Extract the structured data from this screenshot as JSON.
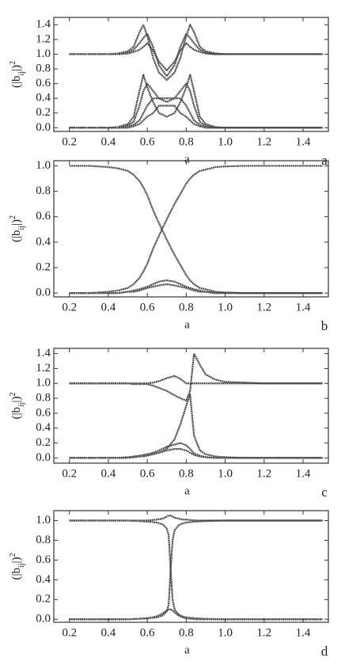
{
  "chart_data": [
    {
      "type": "line",
      "panel_label": "a",
      "x_label": "a",
      "y_label": {
        "prefix": "(|b",
        "sub": "ij",
        "mid": "|)",
        "sup": "2"
      },
      "xlim": [
        0.12,
        1.53
      ],
      "ylim": [
        -0.05,
        1.5
      ],
      "xticks": [
        0.2,
        0.4,
        0.6,
        0.8,
        {
          "value": 1,
          "label": "1.0"
        },
        1.2,
        1.4
      ],
      "yticks": [
        {
          "value": 0,
          "label": "0.0"
        },
        0.2,
        0.4,
        0.6,
        0.8,
        {
          "value": 1,
          "label": "1.0"
        },
        1.2,
        1.4
      ],
      "x": [
        0.2,
        0.3,
        0.4,
        0.45,
        0.5,
        0.53,
        0.56,
        0.58,
        0.6,
        0.63,
        0.66,
        0.7,
        0.74,
        0.77,
        0.8,
        0.82,
        0.84,
        0.87,
        0.9,
        0.95,
        1.0,
        1.1,
        1.2,
        1.3,
        1.4,
        1.5
      ],
      "series": [
        {
          "color": "#4a4a4a",
          "values": [
            1,
            1,
            1,
            1.01,
            1.04,
            1.1,
            1.3,
            1.4,
            1.25,
            0.95,
            0.75,
            0.65,
            0.75,
            0.95,
            1.25,
            1.4,
            1.3,
            1.1,
            1.04,
            1.01,
            1,
            1,
            1,
            1,
            1,
            1
          ]
        },
        {
          "color": "#4a4a4a",
          "values": [
            1,
            1,
            1,
            1,
            1.02,
            1.06,
            1.15,
            1.22,
            1.28,
            1.1,
            0.85,
            0.7,
            0.85,
            1.1,
            1.28,
            1.22,
            1.15,
            1.06,
            1.02,
            1,
            1,
            1,
            1,
            1,
            1,
            1
          ]
        },
        {
          "color": "#4a4a4a",
          "values": [
            1,
            1,
            1,
            1,
            1.01,
            1.03,
            1.06,
            1.1,
            1.15,
            1.05,
            0.9,
            0.78,
            0.9,
            1.05,
            1.15,
            1.1,
            1.06,
            1.03,
            1.01,
            1,
            1,
            1,
            1,
            1,
            1,
            1
          ]
        },
        {
          "color": "#4a4a4a",
          "values": [
            0,
            0,
            0,
            0.01,
            0.05,
            0.15,
            0.5,
            0.72,
            0.55,
            0.35,
            0.2,
            0.15,
            0.2,
            0.35,
            0.55,
            0.72,
            0.5,
            0.15,
            0.05,
            0.01,
            0,
            0,
            0,
            0,
            0,
            0
          ]
        },
        {
          "color": "#4a4a4a",
          "values": [
            0,
            0,
            0,
            0,
            0.03,
            0.08,
            0.3,
            0.5,
            0.6,
            0.5,
            0.4,
            0.35,
            0.4,
            0.5,
            0.6,
            0.5,
            0.3,
            0.08,
            0.03,
            0,
            0,
            0,
            0,
            0,
            0,
            0
          ]
        },
        {
          "color": "#4a4a4a",
          "values": [
            0,
            0,
            0,
            0,
            0.01,
            0.04,
            0.1,
            0.2,
            0.3,
            0.4,
            0.4,
            0.4,
            0.4,
            0.4,
            0.3,
            0.2,
            0.1,
            0.04,
            0.01,
            0,
            0,
            0,
            0,
            0,
            0,
            0
          ]
        },
        {
          "color": "#4a4a4a",
          "values": [
            0,
            0,
            0,
            0,
            0,
            0.02,
            0.05,
            0.1,
            0.15,
            0.2,
            0.3,
            0.3,
            0.3,
            0.2,
            0.15,
            0.1,
            0.05,
            0.02,
            0,
            0,
            0,
            0,
            0,
            0,
            0,
            0
          ]
        }
      ]
    },
    {
      "type": "line",
      "panel_label": "b",
      "x_label": "a",
      "y_label": {
        "prefix": "(|b",
        "sub": "ij",
        "mid": "|)",
        "sup": "2"
      },
      "xlim": [
        0.12,
        1.53
      ],
      "ylim": [
        -0.03,
        1.04
      ],
      "xticks": [
        0.2,
        0.4,
        0.6,
        0.8,
        {
          "value": 1,
          "label": "1.0"
        },
        1.2,
        1.4
      ],
      "yticks": [
        {
          "value": 0,
          "label": "0.0"
        },
        0.2,
        0.4,
        0.6,
        0.8,
        {
          "value": 1,
          "label": "1.0"
        }
      ],
      "x": [
        0.2,
        0.3,
        0.4,
        0.45,
        0.5,
        0.53,
        0.56,
        0.58,
        0.6,
        0.63,
        0.66,
        0.7,
        0.74,
        0.77,
        0.8,
        0.82,
        0.84,
        0.87,
        0.9,
        0.95,
        1.0,
        1.1,
        1.2,
        1.3,
        1.4,
        1.5
      ],
      "series": [
        {
          "color": "#4a4a4a",
          "values": [
            1,
            1,
            0.99,
            0.98,
            0.96,
            0.93,
            0.88,
            0.83,
            0.77,
            0.65,
            0.55,
            0.42,
            0.3,
            0.22,
            0.14,
            0.1,
            0.07,
            0.04,
            0.03,
            0.01,
            0.005,
            0,
            0,
            0,
            0,
            0
          ]
        },
        {
          "color": "#4a4a4a",
          "values": [
            0,
            0,
            0.01,
            0.02,
            0.04,
            0.07,
            0.12,
            0.17,
            0.23,
            0.35,
            0.45,
            0.58,
            0.7,
            0.78,
            0.86,
            0.9,
            0.93,
            0.96,
            0.97,
            0.99,
            0.995,
            1,
            1,
            1,
            1,
            1
          ]
        },
        {
          "color": "#4a4a4a",
          "values": [
            0,
            0,
            0,
            0,
            0.01,
            0.02,
            0.03,
            0.04,
            0.05,
            0.07,
            0.09,
            0.1,
            0.09,
            0.07,
            0.05,
            0.04,
            0.03,
            0.02,
            0.01,
            0,
            0,
            0,
            0,
            0,
            0,
            0
          ]
        },
        {
          "color": "#4a4a4a",
          "values": [
            0,
            0,
            0,
            0,
            0.01,
            0.01,
            0.02,
            0.03,
            0.04,
            0.05,
            0.06,
            0.07,
            0.06,
            0.05,
            0.04,
            0.03,
            0.02,
            0.01,
            0.01,
            0,
            0,
            0,
            0,
            0,
            0,
            0
          ]
        }
      ]
    },
    {
      "type": "line",
      "panel_label": "c",
      "x_label": "a",
      "y_label": {
        "prefix": "(|b",
        "sub": "ij",
        "mid": "|)",
        "sup": "2"
      },
      "xlim": [
        0.12,
        1.53
      ],
      "ylim": [
        -0.07,
        1.47
      ],
      "xticks": [
        0.2,
        0.4,
        0.6,
        0.8,
        {
          "value": 1,
          "label": "1.0"
        },
        1.2,
        1.4
      ],
      "yticks": [
        {
          "value": 0,
          "label": "0.0"
        },
        0.2,
        0.4,
        0.6,
        0.8,
        {
          "value": 1,
          "label": "1.0"
        },
        1.2,
        1.4
      ],
      "x": [
        0.2,
        0.3,
        0.4,
        0.45,
        0.5,
        0.53,
        0.56,
        0.58,
        0.6,
        0.63,
        0.66,
        0.7,
        0.74,
        0.77,
        0.8,
        0.82,
        0.84,
        0.87,
        0.9,
        0.95,
        1.0,
        1.1,
        1.2,
        1.3,
        1.4,
        1.5
      ],
      "series": [
        {
          "color": "#4a4a4a",
          "values": [
            1,
            1,
            1,
            1,
            1,
            0.99,
            0.99,
            0.99,
            0.99,
            0.97,
            0.94,
            0.9,
            0.84,
            0.8,
            0.77,
            0.9,
            1.4,
            1.25,
            1.12,
            1.05,
            1.02,
            1.01,
            1,
            1,
            1,
            1
          ]
        },
        {
          "color": "#4a4a4a",
          "values": [
            1,
            1,
            1,
            1,
            1,
            1,
            1,
            1,
            1,
            1.01,
            1.03,
            1.07,
            1.1,
            1.06,
            1,
            1,
            1,
            1,
            1,
            1,
            1,
            1,
            1,
            1,
            1,
            1
          ]
        },
        {
          "color": "#4a4a4a",
          "values": [
            0,
            0,
            0,
            0,
            0.01,
            0.01,
            0.02,
            0.02,
            0.03,
            0.05,
            0.07,
            0.12,
            0.25,
            0.45,
            0.7,
            0.85,
            0.3,
            0.1,
            0.05,
            0.02,
            0.01,
            0,
            0,
            0,
            0,
            0
          ]
        },
        {
          "color": "#4a4a4a",
          "values": [
            0,
            0,
            0,
            0,
            0.01,
            0.02,
            0.03,
            0.04,
            0.05,
            0.07,
            0.1,
            0.15,
            0.18,
            0.2,
            0.17,
            0.12,
            0.06,
            0.03,
            0.01,
            0,
            0,
            0,
            0,
            0,
            0,
            0
          ]
        },
        {
          "color": "#4a4a4a",
          "values": [
            0,
            0,
            0,
            0,
            0,
            0.01,
            0.02,
            0.03,
            0.04,
            0.05,
            0.07,
            0.1,
            0.12,
            0.12,
            0.1,
            0.07,
            0.04,
            0.02,
            0.01,
            0,
            0,
            0,
            0,
            0,
            0,
            0
          ]
        }
      ]
    },
    {
      "type": "line",
      "panel_label": "d",
      "x_label": "a",
      "y_label": {
        "prefix": "(|b",
        "sub": "ij",
        "mid": "|)",
        "sup": "2"
      },
      "xlim": [
        0.12,
        1.53
      ],
      "ylim": [
        -0.03,
        1.1
      ],
      "xticks": [
        0.2,
        0.4,
        0.6,
        0.8,
        {
          "value": 1,
          "label": "1.0"
        },
        1.2,
        1.4
      ],
      "yticks": [
        {
          "value": 0,
          "label": "0.0"
        },
        0.2,
        0.4,
        0.6,
        0.8,
        {
          "value": 1,
          "label": "1.0"
        }
      ],
      "x": [
        0.2,
        0.3,
        0.4,
        0.5,
        0.6,
        0.65,
        0.68,
        0.7,
        0.71,
        0.72,
        0.73,
        0.74,
        0.76,
        0.78,
        0.8,
        0.85,
        0.9,
        1.0,
        1.1,
        1.2,
        1.3,
        1.4,
        1.5
      ],
      "series": [
        {
          "color": "#4a4a4a",
          "values": [
            1,
            1,
            1,
            1,
            0.99,
            0.98,
            0.96,
            0.92,
            0.85,
            0.5,
            0.2,
            0.1,
            0.05,
            0.03,
            0.02,
            0.01,
            0.005,
            0,
            0,
            0,
            0,
            0,
            0
          ]
        },
        {
          "color": "#4a4a4a",
          "values": [
            0,
            0,
            0,
            0,
            0.01,
            0.02,
            0.04,
            0.08,
            0.15,
            0.5,
            0.8,
            0.9,
            0.95,
            0.97,
            0.98,
            0.99,
            0.995,
            1,
            1,
            1,
            1,
            1,
            1
          ]
        },
        {
          "color": "#4a4a4a",
          "values": [
            1,
            1,
            1,
            1,
            1,
            1.01,
            1.02,
            1.04,
            1.05,
            1.05,
            1.04,
            1.03,
            1.02,
            1.01,
            1.01,
            1,
            1,
            1,
            1,
            1,
            1,
            1,
            1
          ]
        },
        {
          "color": "#4a4a4a",
          "values": [
            0,
            0,
            0,
            0,
            0.01,
            0.03,
            0.06,
            0.09,
            0.1,
            0.1,
            0.09,
            0.07,
            0.04,
            0.02,
            0.01,
            0,
            0,
            0,
            0,
            0,
            0,
            0,
            0
          ]
        }
      ]
    }
  ]
}
